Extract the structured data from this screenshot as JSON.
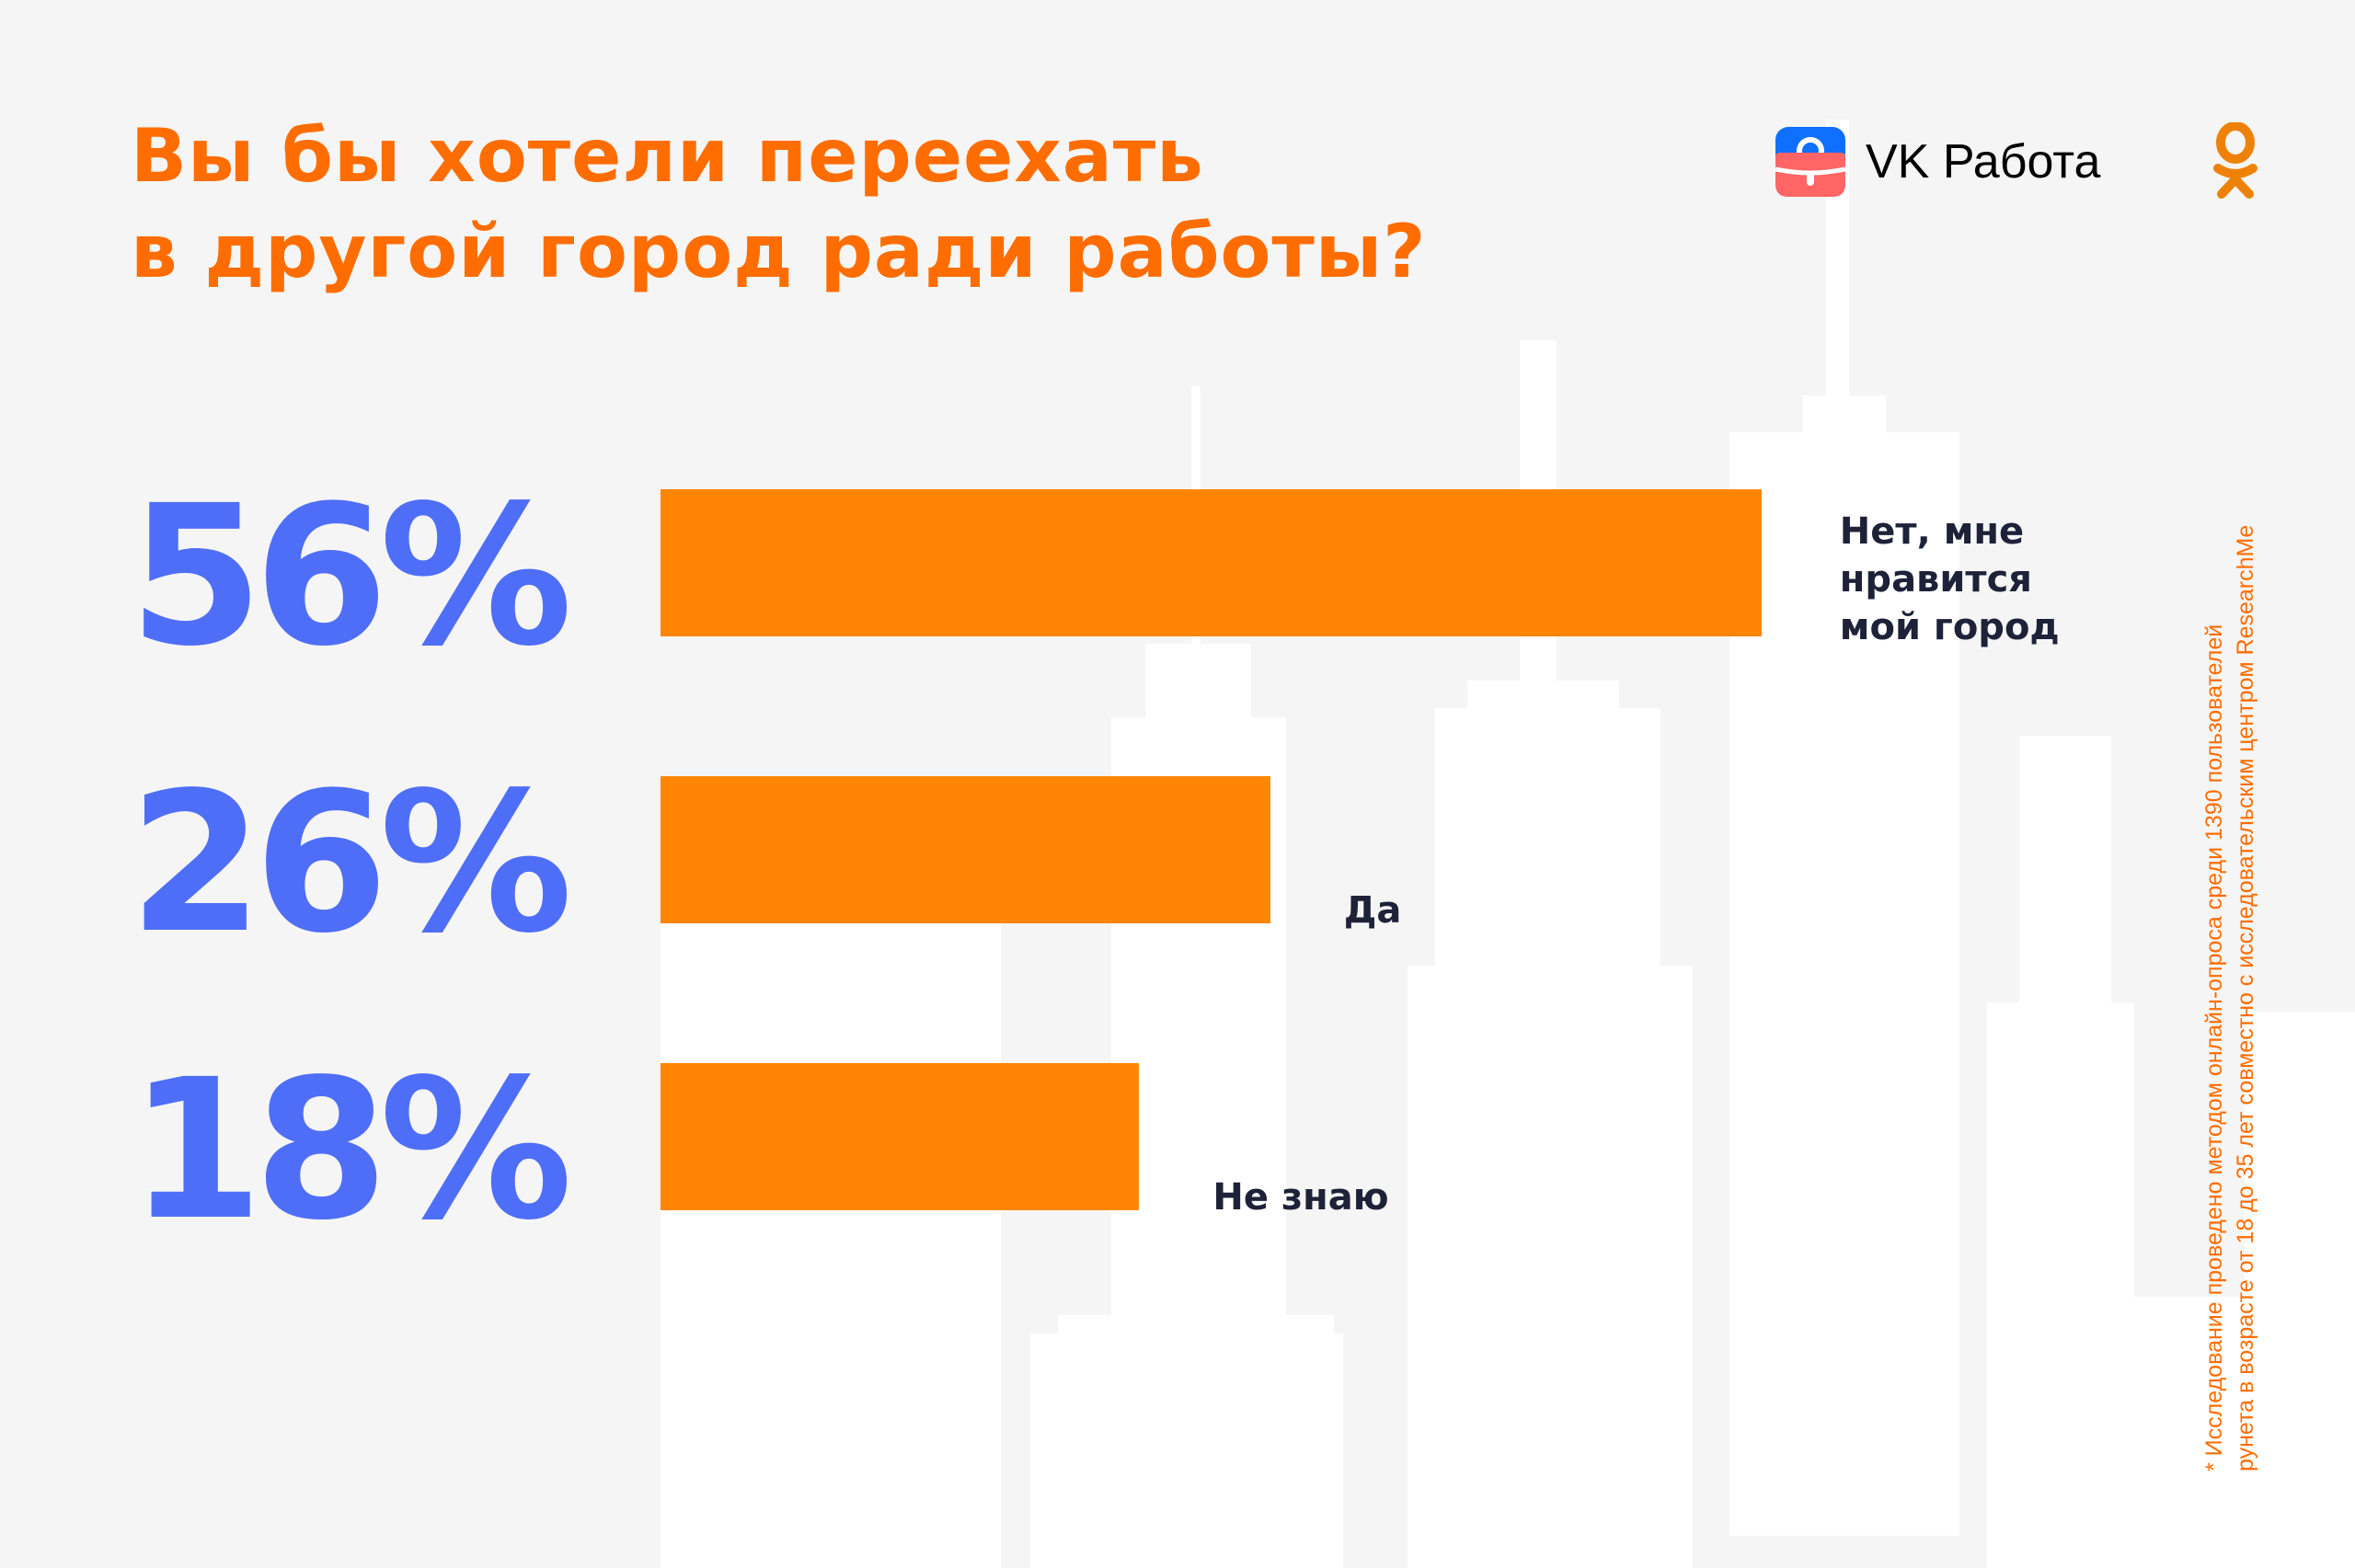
{
  "header": {
    "title_line1": "Вы бы хотели переехать",
    "title_line2": "в другой город ради работы?",
    "brand": "VK Работа"
  },
  "colors": {
    "accent": "#ff8605",
    "title": "#ff6d00",
    "percent": "#4f6ef7",
    "label": "#1d2238"
  },
  "chart_data": {
    "type": "bar",
    "orientation": "horizontal",
    "title": "Вы бы хотели переехать в другой город ради работы?",
    "categories": [
      "Нет, мне нравится мой город",
      "Да",
      "Не знаю"
    ],
    "values": [
      56,
      26,
      18
    ],
    "value_labels": [
      "56%",
      "26%",
      "18%"
    ],
    "label_lines": [
      [
        "Нет, мне",
        "нравится",
        "мой город"
      ],
      [
        "Да"
      ],
      [
        "Не знаю"
      ]
    ],
    "unit": "%"
  },
  "footnote": {
    "line1": "* Исследование проведено методом онлайн-опроса среди 1390 пользователей",
    "line2": "рунета в возрасте от 18 до 35 лет совместно с исследовательским центром ResearchMe"
  }
}
